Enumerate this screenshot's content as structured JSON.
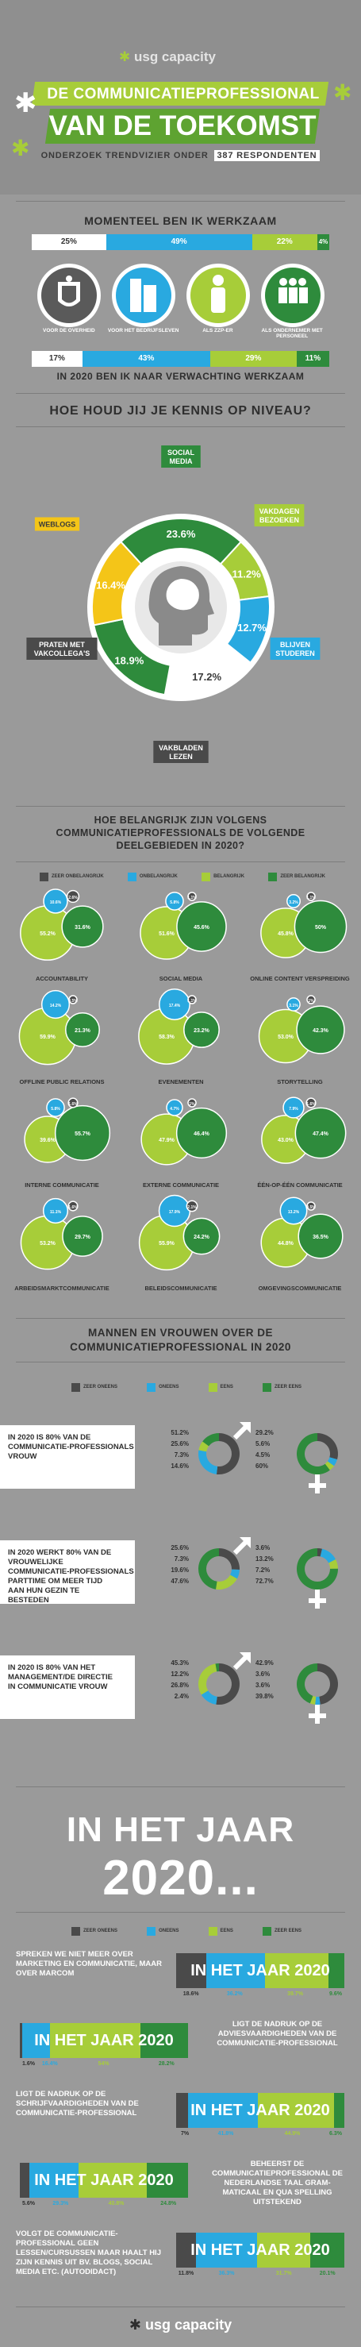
{
  "brand": {
    "name": "usg capacity"
  },
  "header": {
    "title_line1": "DE COMMUNICATIEPROFESSIONAL",
    "title_line2": "VAN DE TOEKOMST",
    "subtitle_prefix": "ONDERZOEK TRENDVIZIER ONDER",
    "subtitle_count": "387 RESPONDENTEN"
  },
  "werkzaam": {
    "title": "MOMENTEEL BEN IK WERKZAAM",
    "title_2020": "IN 2020 BEN IK NAAR VERWACHTING WERKZAAM",
    "now": [
      "25%",
      "49%",
      "22%",
      "4%"
    ],
    "future": [
      "17%",
      "43%",
      "29%",
      "11%"
    ],
    "labels": [
      "VOOR DE OVERHEID",
      "VOOR HET BEDRIJFSLEVEN",
      "ALS ZZP-ER",
      "ALS ONDERNEMER MET PERSONEEL"
    ],
    "icons": [
      "government-crest-icon",
      "office-building-icon",
      "single-person-icon",
      "group-people-icon"
    ]
  },
  "kennis": {
    "title": "HOE HOUD JIJ JE KENNIS OP NIVEAU?",
    "segments": [
      {
        "label": "SOCIAL MEDIA",
        "value": "23.6%",
        "color": "#2e8b3c"
      },
      {
        "label": "VAKDAGEN BEZOEKEN",
        "value": "11.2%",
        "color": "#a7cd39"
      },
      {
        "label": "BLIJVEN STUDEREN",
        "value": "12.7%",
        "color": "#29a9e0"
      },
      {
        "label": "VAKBLADEN LEZEN",
        "value": "17.2%",
        "color": "#ffffff"
      },
      {
        "label": "PRATEN MET VAKCOLLEGA'S",
        "value": "18.9%",
        "color": "#2e8b3c"
      },
      {
        "label": "WEBLOGS",
        "value": "16.4%",
        "color": "#f4c518"
      }
    ]
  },
  "belang": {
    "title_line1": "HOE BELANGRIJK ZIJN VOLGENS",
    "title_line2": "COMMUNICATIEPROFESSIONALS DE VOLGENDE",
    "title_line3": "DEELGEBIEDEN IN 2020?",
    "legend": [
      {
        "label": "ZEER ONBELANGRIJK",
        "color": "#4a4a4a"
      },
      {
        "label": "ONBELANGRIJK",
        "color": "#29a9e0"
      },
      {
        "label": "BELANGRIJK",
        "color": "#a7cd39"
      },
      {
        "label": "ZEER BELANGRIJK",
        "color": "#2e8b3c"
      }
    ],
    "items": [
      {
        "name": "ACCOUNTABILITY",
        "vals": [
          "2.6%",
          "10.6%",
          "55.2%",
          "31.6%"
        ]
      },
      {
        "name": "SOCIAL MEDIA",
        "vals": [
          "1.1%",
          "5.8%",
          "51.6%",
          "45.6%"
        ]
      },
      {
        "name": "ONLINE CONTENT VERSPREIDING",
        "vals": [
          "1.1%",
          "3.2%",
          "45.8%",
          "50%"
        ]
      },
      {
        "name": "OFFLINE PUBLIC RELATIONS",
        "vals": [
          "0.5%",
          "14.2%",
          "59.9%",
          "21.3%"
        ]
      },
      {
        "name": "EVENEMENTEN",
        "vals": [
          "1.1%",
          "17.4%",
          "58.3%",
          "23.2%"
        ]
      },
      {
        "name": "STORYTELLING",
        "vals": [
          "1%",
          "3.1%",
          "53.0%",
          "42.3%"
        ]
      },
      {
        "name": "INTERNE COMMUNICATIE",
        "vals": [
          "1.6%",
          "5.8%",
          "39.6%",
          "55.7%"
        ]
      },
      {
        "name": "EXTERNE COMMUNICATIE",
        "vals": [
          "1%",
          "4.7%",
          "47.9%",
          "46.4%"
        ]
      },
      {
        "name": "ÉÉN-OP-ÉÉN COMMUNICATIE",
        "vals": [
          "1.6%",
          "7.9%",
          "43.0%",
          "47.4%"
        ]
      },
      {
        "name": "ARBEIDSMARKTCOMMUNICATIE",
        "vals": [
          "1.6%",
          "11.1%",
          "53.2%",
          "29.7%"
        ]
      },
      {
        "name": "BELEIDSCOMMUNICATIE",
        "vals": [
          "2.1%",
          "17.9%",
          "55.9%",
          "24.2%"
        ]
      },
      {
        "name": "OMGEVINGSCOMMUNICATIE",
        "vals": [
          "0.5%",
          "13.2%",
          "44.8%",
          "36.5%"
        ]
      }
    ]
  },
  "mv": {
    "title_line1": "MANNEN EN VROUWEN OVER DE",
    "title_line2": "COMMUNICATIEPROFESSIONAL IN 2020",
    "legend": [
      "ZEER ONEENS",
      "ONEENS",
      "EENS",
      "ZEER EENS"
    ],
    "rows": [
      {
        "statement": "IN 2020 IS 80% VAN DE COMMUNICATIE-PROFESSIONALS VROUW",
        "men": [
          "51.2%",
          "25.6%",
          "7.3%",
          "14.6%"
        ],
        "women": [
          "29.2%",
          "5.6%",
          "4.5%",
          "60%"
        ]
      },
      {
        "statement": "IN 2020 WERKT 80% VAN DE VROUWELIJKE COMMUNICATIE-PROFESSIONALS PARTTIME OM MEER TIJD AAN HUN GEZIN TE BESTEDEN",
        "men": [
          "25.6%",
          "7.3%",
          "19.6%",
          "47.6%"
        ],
        "women": [
          "3.6%",
          "13.2%",
          "7.2%",
          "72.7%"
        ]
      },
      {
        "statement": "IN 2020 IS 80% VAN HET MANAGEMENT/DE DIRECTIE IN COMMUNICATIE VROUW",
        "men": [
          "45.3%",
          "12.2%",
          "26.8%",
          "2.4%"
        ],
        "women": [
          "42.9%",
          "3.6%",
          "3.6%",
          "39.8%"
        ]
      }
    ]
  },
  "jaar": {
    "title_line1": "IN HET JAAR",
    "title_line2": "2020...",
    "bar_text": "IN HET JAAR 2020",
    "legend": [
      "ZEER ONEENS",
      "ONEENS",
      "EENS",
      "ZEER EENS"
    ],
    "items": [
      {
        "text": "SPREKEN WE NIET MEER OVER MARKETING EN COMMUNICATIE, MAAR OVER MARCOM",
        "vals": [
          "18.6%",
          "36.2%",
          "39.7%",
          "9.6%"
        ],
        "side": "left"
      },
      {
        "text": "LIGT DE NADRUK OP DE ADVIESVAARDIGHEDEN VAN DE COMMUNICATIE-PROFESSIONAL",
        "vals": [
          "1.6%",
          "16.4%",
          "54%",
          "28.2%"
        ],
        "side": "right"
      },
      {
        "text": "LIGT DE NADRUK OP DE SCHRIJFVAARDIGHEDEN VAN DE COMMUNICATIE-PROFESSIONAL",
        "vals": [
          "7%",
          "41.8%",
          "44.9%",
          "6.3%"
        ],
        "side": "left"
      },
      {
        "text": "BEHEERST DE COMMUNICATIEPROFESSIONAL DE NEDERLANDSE TAAL GRAM-MATICAAL EN QUA SPELLING UITSTEKEND",
        "vals": [
          "5.6%",
          "29.3%",
          "40.8%",
          "24.8%"
        ],
        "side": "right"
      },
      {
        "text": "VOLGT DE COMMUNICATIE-PROFESSIONAL GEEN LESSEN/CURSUSSEN MAAR HAALT HIJ ZIJN KENNIS UIT BV. BLOGS, SOCIAL MEDIA ETC. (AUTODIDACT)",
        "vals": [
          "11.8%",
          "36.3%",
          "31.7%",
          "20.1%"
        ],
        "side": "left"
      }
    ]
  },
  "colors": {
    "dark": "#4a4a4a",
    "blue": "#29a9e0",
    "lime": "#a7cd39",
    "green": "#2e8b3c",
    "bg": "#9a9a9a",
    "yellow": "#f4c518"
  }
}
